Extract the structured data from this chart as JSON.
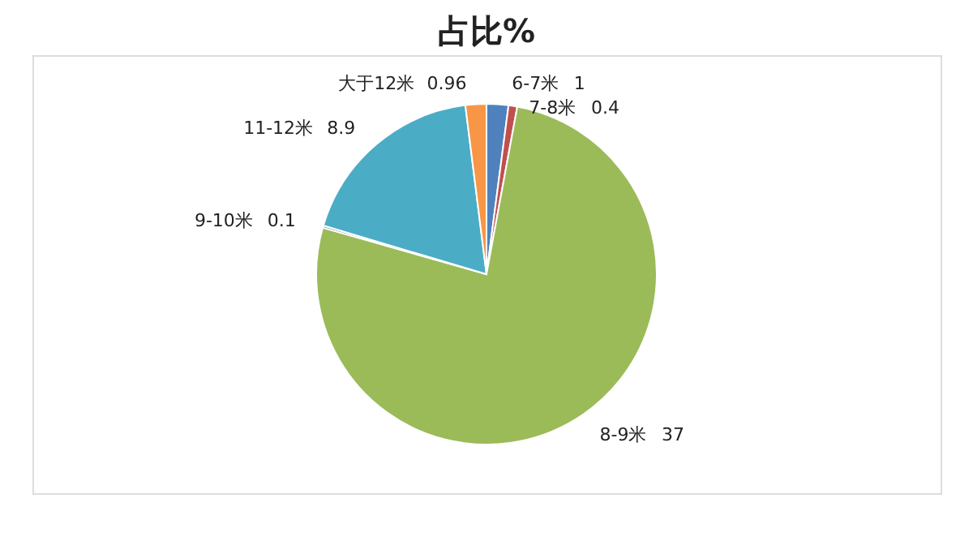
{
  "chart_data": {
    "type": "pie",
    "title": "占比%",
    "categories": [
      "6-7米",
      "7-8米",
      "8-9米",
      "9-10米",
      "11-12米",
      "大于12米"
    ],
    "values": [
      1,
      0.4,
      37,
      0.1,
      8.9,
      0.96
    ],
    "colors": [
      "#4f81bd",
      "#c0504d",
      "#9bbb59",
      "#8064a2",
      "#4bacc6",
      "#f79646"
    ],
    "data_labels": true,
    "legend": false
  }
}
